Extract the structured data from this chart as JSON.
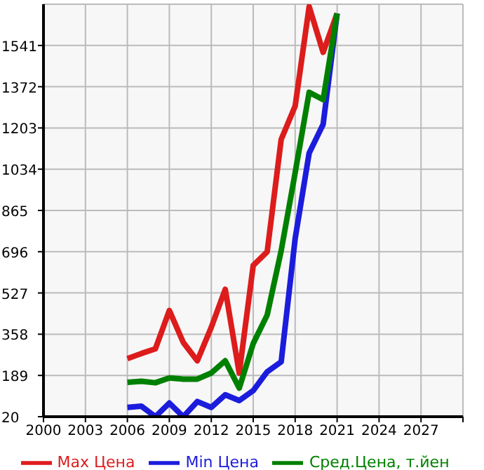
{
  "chart_data": {
    "type": "line",
    "x": [
      2006,
      2007,
      2008,
      2009,
      2010,
      2011,
      2012,
      2013,
      2014,
      2015,
      2016,
      2017,
      2018,
      2019,
      2020,
      2021
    ],
    "series": [
      {
        "name": "Max Цена",
        "color": "#dd1c1c",
        "values": [
          258,
          279,
          298,
          455,
          324,
          249,
          386,
          542,
          199,
          640,
          696,
          1156,
          1293,
          1700,
          1513,
          1672
        ]
      },
      {
        "name": "Min Цена",
        "color": "#1c1cdd",
        "values": [
          58,
          63,
          20,
          76,
          20,
          82,
          58,
          110,
          86,
          127,
          204,
          245,
          750,
          1100,
          1218,
          1672
        ]
      },
      {
        "name": "Сред.Цена, т.йен",
        "color": "#008000",
        "values": [
          161,
          165,
          159,
          179,
          174,
          174,
          199,
          249,
          137,
          320,
          437,
          700,
          1020,
          1349,
          1319,
          1672
        ]
      }
    ],
    "xlim": [
      2000,
      2030
    ],
    "xticks": [
      2000,
      2003,
      2006,
      2009,
      2012,
      2015,
      2018,
      2021,
      2024,
      2027,
      {
        "value": 2030,
        "label": null
      }
    ],
    "ylim": [
      20,
      1710
    ],
    "yticks": [
      20,
      189,
      358,
      527,
      696,
      865,
      1034,
      1203,
      1372,
      1541
    ],
    "grid": true,
    "legend": "bottom",
    "marker": "none",
    "line_style": "solid"
  }
}
